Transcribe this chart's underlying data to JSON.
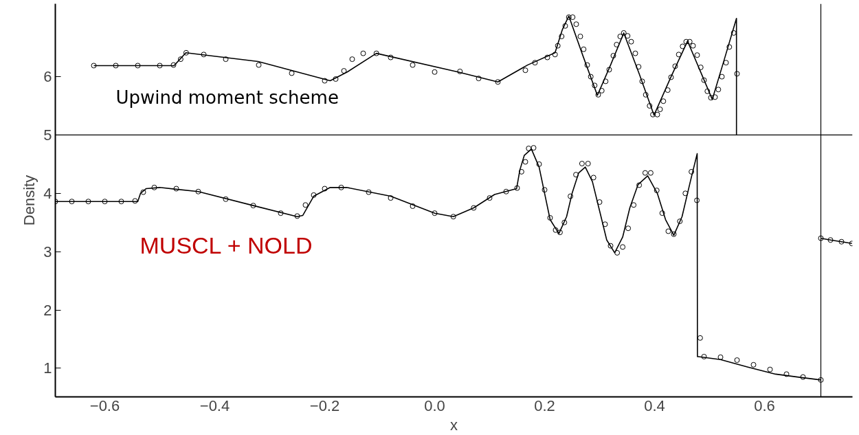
{
  "chart_data": {
    "type": "line",
    "xlabel": "x",
    "ylabel": "Density",
    "xlim": [
      -0.69,
      0.76
    ],
    "ylim": [
      0.51,
      7.25
    ],
    "xticks": [
      {
        "value": -0.6,
        "label": "−0.6"
      },
      {
        "value": -0.4,
        "label": "−0.4"
      },
      {
        "value": -0.2,
        "label": "−0.2"
      },
      {
        "value": 0.0,
        "label": "0.0"
      },
      0.2,
      0.4,
      0.6
    ],
    "yticks": [
      1,
      2,
      3,
      4,
      5,
      6
    ],
    "grid": false,
    "ref_lines": [
      {
        "axis": "y",
        "value": 5.0,
        "color": "#000000"
      },
      {
        "axis": "x",
        "value": 0.7025,
        "color": "#000000"
      }
    ],
    "annotations": [
      "Upwind moment scheme",
      "MUSCL + NOLD"
    ],
    "series": [
      {
        "color": "#000000",
        "line_style": "solid",
        "marker": "none",
        "x": [
          -0.69,
          -0.54,
          -0.535,
          -0.525,
          -0.5,
          -0.43,
          -0.33,
          -0.25,
          -0.24,
          -0.22,
          -0.19,
          -0.16,
          -0.08,
          0.0,
          0.034,
          0.071,
          0.109,
          0.149,
          0.155,
          0.163,
          0.176,
          0.19,
          0.2,
          0.21,
          0.226,
          0.24,
          0.25,
          0.262,
          0.274,
          0.287,
          0.3,
          0.313,
          0.3275,
          0.342,
          0.355,
          0.37,
          0.3875,
          0.405,
          0.42,
          0.435,
          0.45,
          0.465,
          0.4775,
          0.478,
          0.48,
          0.52,
          0.57,
          0.62,
          0.66,
          0.7025
        ],
        "values": [
          3.86,
          3.86,
          4.0,
          4.08,
          4.1,
          4.03,
          3.79,
          3.6,
          3.62,
          3.95,
          4.1,
          4.1,
          3.95,
          3.66,
          3.6,
          3.75,
          3.98,
          4.08,
          4.4,
          4.65,
          4.76,
          4.45,
          4.0,
          3.55,
          3.31,
          3.6,
          4.0,
          4.35,
          4.45,
          4.2,
          3.7,
          3.2,
          2.98,
          3.25,
          3.75,
          4.15,
          4.3,
          4.0,
          3.55,
          3.28,
          3.6,
          4.2,
          4.68,
          1.2,
          1.2,
          1.15,
          1.02,
          0.9,
          0.85,
          0.8
        ]
      },
      {
        "type": "scatter",
        "color": "#000000",
        "marker": "circle",
        "x": [
          -0.69,
          -0.66,
          -0.63,
          -0.6,
          -0.57,
          -0.545,
          -0.53,
          -0.51,
          -0.47,
          -0.43,
          -0.38,
          -0.33,
          -0.28,
          -0.25,
          -0.235,
          -0.22,
          -0.2,
          -0.17,
          -0.12,
          -0.08,
          -0.04,
          0.0,
          0.034,
          0.071,
          0.1,
          0.13,
          0.15,
          0.158,
          0.165,
          0.171,
          0.18,
          0.19,
          0.2,
          0.21,
          0.22,
          0.228,
          0.236,
          0.247,
          0.257,
          0.268,
          0.279,
          0.289,
          0.3,
          0.31,
          0.32,
          0.332,
          0.342,
          0.352,
          0.362,
          0.372,
          0.383,
          0.393,
          0.404,
          0.414,
          0.425,
          0.435,
          0.446,
          0.456,
          0.467,
          0.477,
          0.483,
          0.49,
          0.52,
          0.55,
          0.58,
          0.61,
          0.64,
          0.67,
          0.7025
        ],
        "values": [
          3.86,
          3.86,
          3.86,
          3.86,
          3.86,
          3.87,
          4.02,
          4.1,
          4.08,
          4.03,
          3.9,
          3.79,
          3.66,
          3.61,
          3.8,
          3.97,
          4.08,
          4.1,
          4.02,
          3.92,
          3.78,
          3.66,
          3.6,
          3.75,
          3.92,
          4.03,
          4.09,
          4.37,
          4.54,
          4.77,
          4.78,
          4.5,
          4.06,
          3.58,
          3.37,
          3.33,
          3.5,
          3.95,
          4.32,
          4.51,
          4.51,
          4.27,
          3.85,
          3.47,
          3.1,
          2.98,
          3.08,
          3.4,
          3.8,
          4.14,
          4.35,
          4.35,
          4.05,
          3.66,
          3.35,
          3.3,
          3.52,
          4.0,
          4.37,
          3.88,
          1.52,
          1.2,
          1.19,
          1.14,
          1.06,
          0.98,
          0.9,
          0.85,
          0.8
        ]
      },
      {
        "color": "#000000",
        "line_style": "solid",
        "marker": "none",
        "x": [
          -0.62,
          -0.474,
          -0.4525,
          -0.321,
          -0.19,
          -0.159,
          -0.106,
          0.0425,
          0.115,
          0.169,
          0.219,
          0.232,
          0.244,
          0.27,
          0.296,
          0.32,
          0.344,
          0.372,
          0.399,
          0.43,
          0.46,
          0.483,
          0.505,
          0.527,
          0.549,
          0.549
        ],
        "values": [
          6.19,
          6.19,
          6.41,
          6.26,
          5.93,
          6.08,
          6.4,
          6.08,
          5.91,
          6.2,
          6.41,
          6.8,
          7.04,
          6.35,
          5.68,
          6.2,
          6.75,
          6.05,
          5.34,
          6.0,
          6.61,
          6.1,
          5.61,
          6.3,
          7.0,
          5.0
        ]
      },
      {
        "type": "scatter",
        "color": "#000000",
        "marker": "circle",
        "x": [
          -0.62,
          -0.58,
          -0.54,
          -0.5,
          -0.475,
          -0.462,
          -0.452,
          -0.42,
          -0.38,
          -0.32,
          -0.26,
          -0.2,
          -0.18,
          -0.165,
          -0.15,
          -0.13,
          -0.106,
          -0.08,
          -0.04,
          0.0,
          0.046,
          0.08,
          0.115,
          0.165,
          0.1825,
          0.205,
          0.219,
          0.224,
          0.231,
          0.2375,
          0.244,
          0.251,
          0.2575,
          0.265,
          0.271,
          0.2775,
          0.284,
          0.291,
          0.2975,
          0.304,
          0.311,
          0.3175,
          0.325,
          0.331,
          0.3375,
          0.344,
          0.351,
          0.3575,
          0.365,
          0.371,
          0.3775,
          0.384,
          0.391,
          0.397,
          0.405,
          0.41,
          0.416,
          0.424,
          0.43,
          0.4375,
          0.444,
          0.451,
          0.4575,
          0.464,
          0.47,
          0.4775,
          0.484,
          0.49,
          0.496,
          0.5025,
          0.51,
          0.516,
          0.5225,
          0.53,
          0.536,
          0.544,
          0.55
        ],
        "values": [
          6.19,
          6.19,
          6.19,
          6.19,
          6.2,
          6.3,
          6.41,
          6.38,
          6.3,
          6.2,
          6.06,
          5.93,
          5.96,
          6.1,
          6.3,
          6.4,
          6.4,
          6.33,
          6.2,
          6.08,
          6.09,
          5.97,
          5.91,
          6.11,
          6.24,
          6.33,
          6.38,
          6.53,
          6.69,
          6.87,
          7.02,
          7.02,
          6.9,
          6.69,
          6.47,
          6.2,
          6.0,
          5.85,
          5.69,
          5.76,
          5.92,
          6.12,
          6.36,
          6.55,
          6.69,
          6.75,
          6.7,
          6.6,
          6.4,
          6.17,
          5.92,
          5.69,
          5.5,
          5.35,
          5.35,
          5.44,
          5.58,
          5.77,
          5.99,
          6.18,
          6.38,
          6.52,
          6.6,
          6.6,
          6.53,
          6.37,
          6.16,
          5.94,
          5.75,
          5.64,
          5.65,
          5.78,
          6.0,
          6.24,
          6.51,
          6.75,
          6.05
        ]
      },
      {
        "color": "#000000",
        "line_style": "solid",
        "marker": "circle",
        "x": [
          0.7025,
          0.72,
          0.74,
          0.759
        ],
        "values": [
          3.23,
          3.2,
          3.17,
          3.14
        ]
      }
    ]
  }
}
